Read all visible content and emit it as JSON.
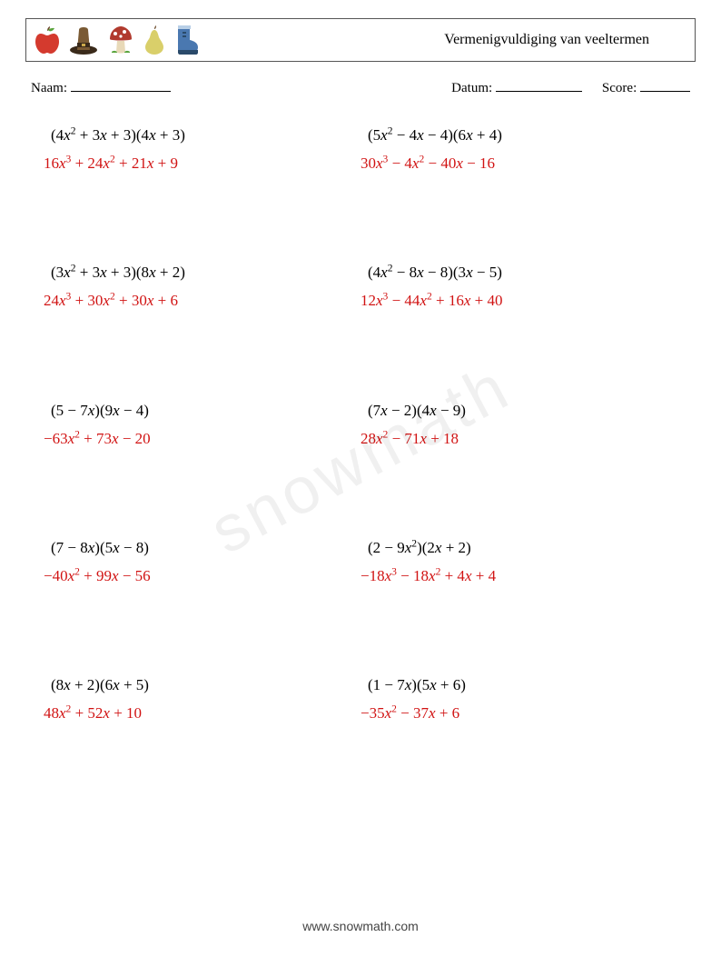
{
  "header": {
    "title": "Vermenigvuldiging van veeltermen",
    "icons": [
      "apple",
      "hat",
      "mushroom",
      "pear",
      "boot"
    ]
  },
  "labels": {
    "name": "Naam:",
    "date": "Datum:",
    "score": "Score:"
  },
  "colors": {
    "problem": "#000000",
    "answer": "#d11313",
    "border": "#555555",
    "background": "#ffffff",
    "watermark": "rgba(0,0,0,0.06)"
  },
  "font_sizes": {
    "title": 16,
    "labels": 15,
    "math": 17,
    "footer": 14
  },
  "problems": [
    {
      "q": "(4x^2 + 3x + 3)(4x + 3)",
      "a": "16x^3 + 24x^2 + 21x + 9"
    },
    {
      "q": "(5x^2 − 4x − 4)(6x + 4)",
      "a": "30x^3 − 4x^2 − 40x − 16"
    },
    {
      "q": "(3x^2 + 3x + 3)(8x + 2)",
      "a": "24x^3 + 30x^2 + 30x + 6"
    },
    {
      "q": "(4x^2 − 8x − 8)(3x − 5)",
      "a": "12x^3 − 44x^2 + 16x + 40"
    },
    {
      "q": "(5 − 7x)(9x − 4)",
      "a": "−63x^2 + 73x − 20"
    },
    {
      "q": "(7x − 2)(4x − 9)",
      "a": "28x^2 − 71x + 18"
    },
    {
      "q": "(7 − 8x)(5x − 8)",
      "a": "−40x^2 + 99x − 56"
    },
    {
      "q": "(2 − 9x^2)(2x + 2)",
      "a": "−18x^3 − 18x^2 + 4x + 4"
    },
    {
      "q": "(8x + 2)(6x + 5)",
      "a": "48x^2 + 52x + 10"
    },
    {
      "q": "(1 − 7x)(5x + 6)",
      "a": "−35x^2 − 37x + 6"
    }
  ],
  "footer": "www.snowmath.com",
  "watermark": "snowmath"
}
